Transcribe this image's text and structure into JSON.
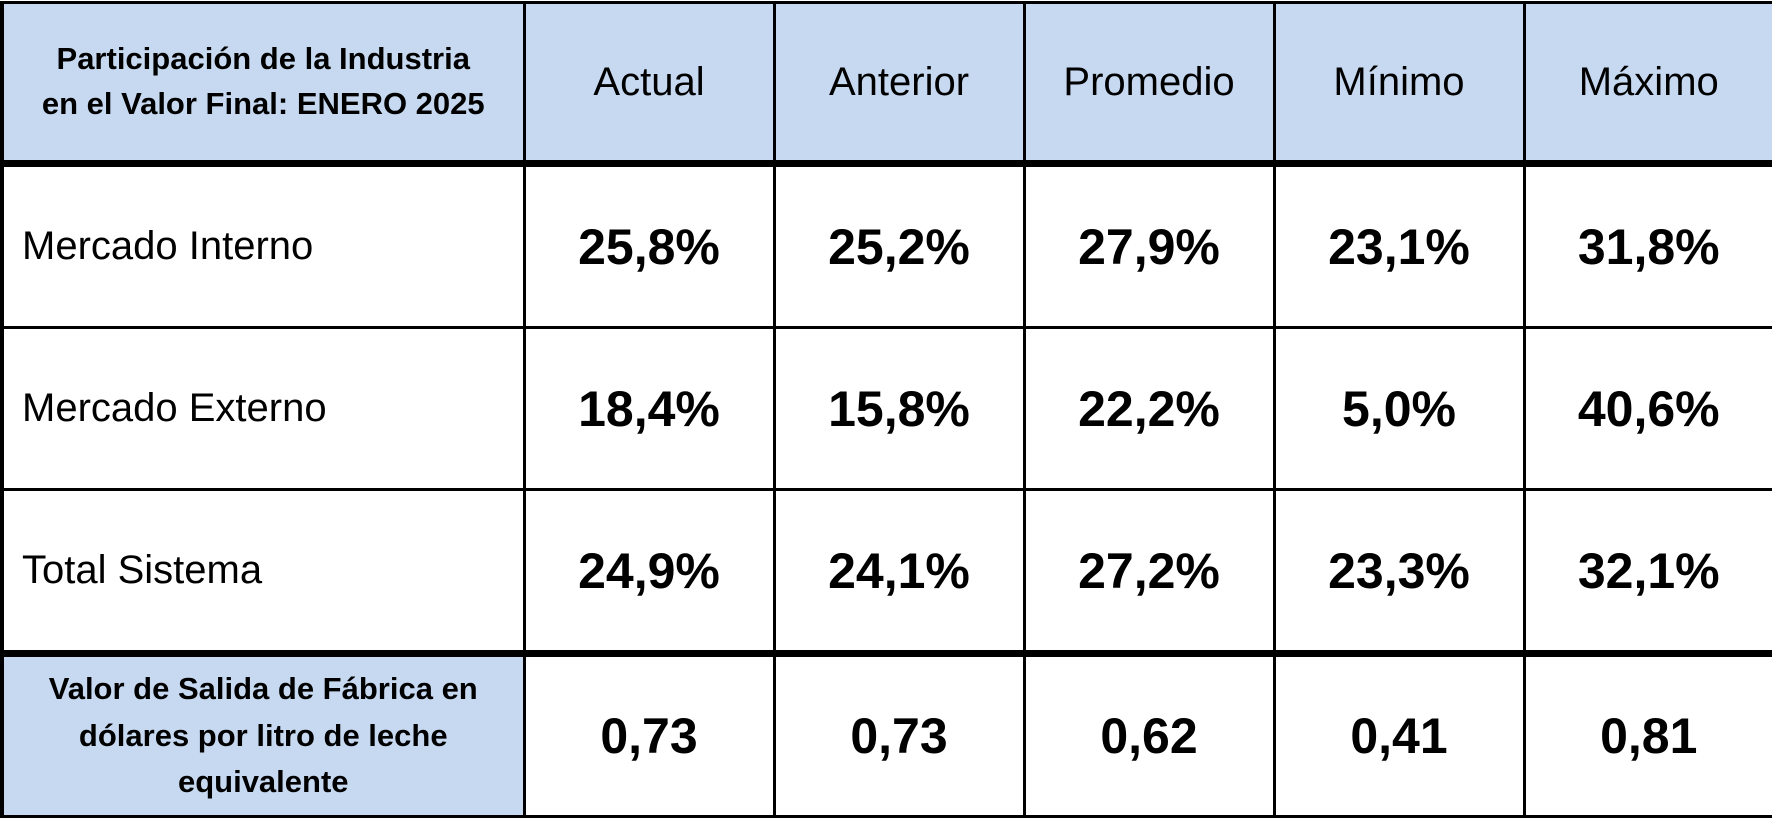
{
  "table": {
    "corner_title_line1": "Participación de la Industria",
    "corner_title_line2": "en el Valor Final: ENERO 2025",
    "columns": [
      "Actual",
      "Anterior",
      "Promedio",
      "Mínimo",
      "Máximo"
    ],
    "rows": [
      {
        "label": "Mercado Interno",
        "values": [
          "25,8%",
          "25,2%",
          "27,9%",
          "23,1%",
          "31,8%"
        ]
      },
      {
        "label": "Mercado Externo",
        "values": [
          "18,4%",
          "15,8%",
          "22,2%",
          "5,0%",
          "40,6%"
        ]
      },
      {
        "label": "Total Sistema",
        "values": [
          "24,9%",
          "24,1%",
          "27,2%",
          "23,3%",
          "32,1%"
        ]
      }
    ],
    "price_row": {
      "label_line1": "Valor de Salida de Fábrica en",
      "label_line2": "dólares por litro de leche",
      "label_line3": "equivalente",
      "values": [
        "0,73",
        "0,73",
        "0,62",
        "0,41",
        "0,81"
      ]
    }
  },
  "colors": {
    "header_fill": "#c6d9f0",
    "border": "#000000",
    "cell_fill": "#ffffff"
  }
}
